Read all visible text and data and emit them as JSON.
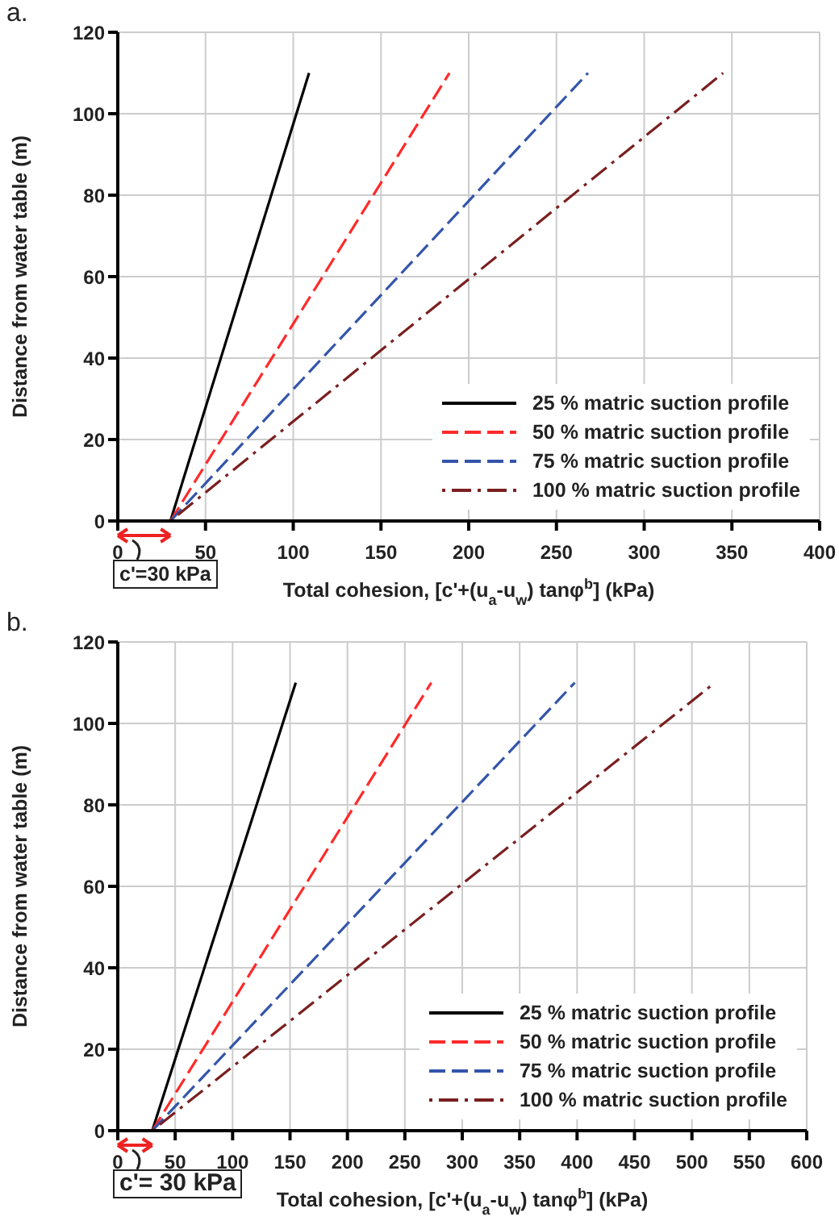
{
  "chart_data": [
    {
      "type": "line",
      "title": "a.",
      "xlabel": "Total cohesion, [c'+(u$_{a}$-u$_{w}$) tanφ$^{b}$] (kPa)",
      "ylabel": "Distance from water table (m)",
      "xlim": [
        0,
        400
      ],
      "xticks": [
        0,
        50,
        100,
        150,
        200,
        250,
        300,
        350,
        400
      ],
      "ylim": [
        0,
        120
      ],
      "yticks": [
        0,
        20,
        40,
        60,
        80,
        100,
        120
      ],
      "grid": true,
      "legend": "bottom right",
      "annotations": [
        "c'=30 kPa"
      ],
      "series": [
        {
          "name": "25 % matric suction profile",
          "color": "#000000",
          "line_style": "solid",
          "x": [
            30,
            109
          ],
          "values": [
            0,
            110
          ]
        },
        {
          "name": "50 % matric suction profile",
          "color": "#ff2a2a",
          "line_style": "dashed",
          "x": [
            30,
            189
          ],
          "values": [
            0,
            110
          ]
        },
        {
          "name": "75 % matric suction profile",
          "color": "#3355aa",
          "line_style": "dashed",
          "x": [
            30,
            268
          ],
          "values": [
            0,
            110
          ]
        },
        {
          "name": "100 % matric suction profile",
          "color": "#7a1f1f",
          "line_style": "dotted",
          "x": [
            30,
            345
          ],
          "values": [
            0,
            110
          ]
        }
      ]
    },
    {
      "type": "line",
      "title": "b.",
      "xlabel": "Total cohesion, [c'+(u$_{a}$-u$_{w}$) tanφ$^{b}$] (kPa)",
      "ylabel": "Distance from water table (m)",
      "xlim": [
        0,
        600
      ],
      "xticks": [
        0,
        50,
        100,
        150,
        200,
        250,
        300,
        350,
        400,
        450,
        500,
        550,
        600
      ],
      "ylim": [
        0,
        120
      ],
      "yticks": [
        0,
        20,
        40,
        60,
        80,
        100,
        120
      ],
      "grid": true,
      "legend": "bottom right",
      "annotations": [
        "c'= 30 kPa"
      ],
      "series": [
        {
          "name": "25 % matric suction profile",
          "color": "#000000",
          "line_style": "solid",
          "x": [
            30,
            155
          ],
          "values": [
            0,
            110
          ]
        },
        {
          "name": "50 % matric suction profile",
          "color": "#ff2a2a",
          "line_style": "dashed",
          "x": [
            30,
            273
          ],
          "values": [
            0,
            110
          ]
        },
        {
          "name": "75 % matric suction profile",
          "color": "#3355aa",
          "line_style": "dashed",
          "x": [
            30,
            398
          ],
          "values": [
            0,
            110
          ]
        },
        {
          "name": "100 % matric suction profile",
          "color": "#7a1f1f",
          "line_style": "dotted",
          "x": [
            30,
            520
          ],
          "values": [
            0,
            110
          ]
        }
      ]
    }
  ]
}
